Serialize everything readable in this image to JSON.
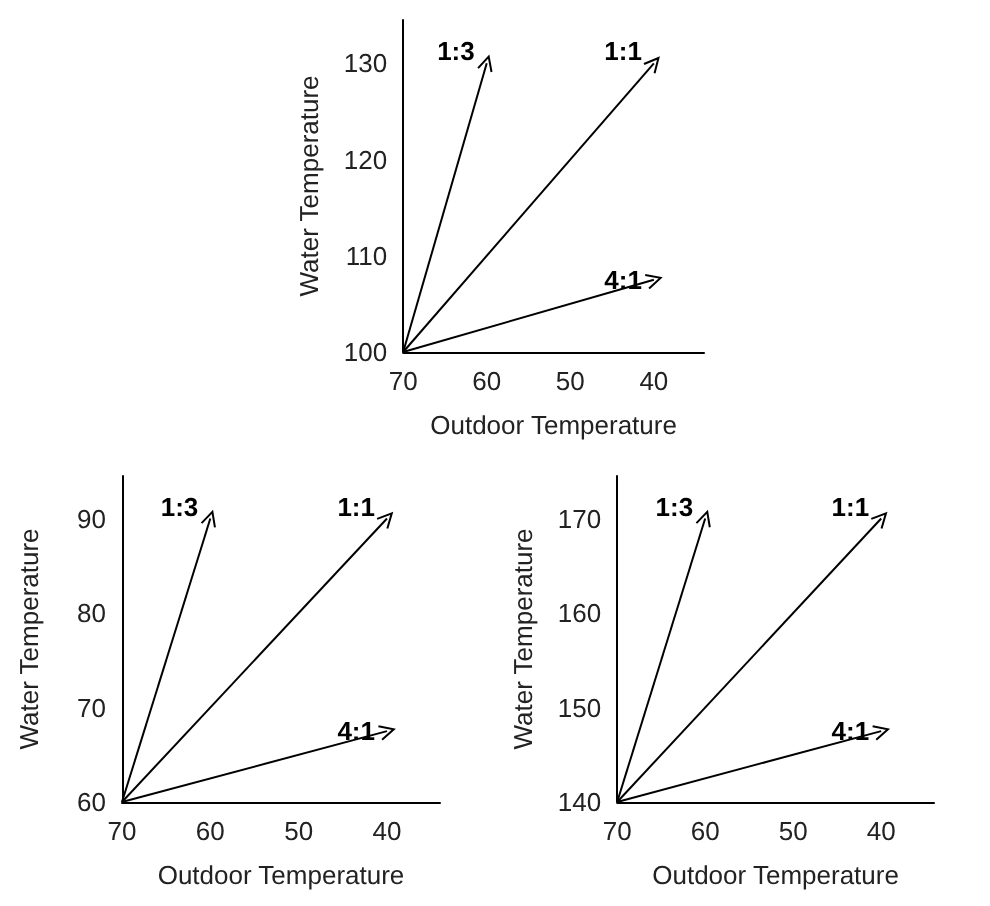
{
  "chart_data": [
    {
      "type": "line",
      "xlabel": "Outdoor Temperature",
      "ylabel": "Water Temperature",
      "xlim": [
        70,
        34
      ],
      "ylim": [
        100,
        134.5
      ],
      "xticks": [
        70,
        60,
        50,
        40
      ],
      "yticks": [
        100,
        110,
        120,
        130
      ],
      "grid": false,
      "legend": false,
      "series": [
        {
          "name": "1:3",
          "color": "#000000",
          "x": [
            70,
            60
          ],
          "values": [
            100,
            130
          ]
        },
        {
          "name": "1:1",
          "color": "#000000",
          "x": [
            70,
            40
          ],
          "values": [
            100,
            130
          ]
        },
        {
          "name": "4:1",
          "color": "#000000",
          "x": [
            70,
            40
          ],
          "values": [
            100,
            107.5
          ]
        }
      ]
    },
    {
      "type": "line",
      "xlabel": "Outdoor Temperature",
      "ylabel": "Water Temperature",
      "xlim": [
        70,
        34
      ],
      "ylim": [
        60,
        94.5
      ],
      "xticks": [
        70,
        60,
        50,
        40
      ],
      "yticks": [
        60,
        70,
        80,
        90
      ],
      "grid": false,
      "legend": false,
      "series": [
        {
          "name": "1:3",
          "color": "#000000",
          "x": [
            70,
            60
          ],
          "values": [
            60,
            90
          ]
        },
        {
          "name": "1:1",
          "color": "#000000",
          "x": [
            70,
            40
          ],
          "values": [
            60,
            90
          ]
        },
        {
          "name": "4:1",
          "color": "#000000",
          "x": [
            70,
            40
          ],
          "values": [
            60,
            67.5
          ]
        }
      ]
    },
    {
      "type": "line",
      "xlabel": "Outdoor Temperature",
      "ylabel": "Water Temperature",
      "xlim": [
        70,
        34
      ],
      "ylim": [
        140,
        174.5
      ],
      "xticks": [
        70,
        60,
        50,
        40
      ],
      "yticks": [
        140,
        150,
        160,
        170
      ],
      "grid": false,
      "legend": false,
      "series": [
        {
          "name": "1:3",
          "color": "#000000",
          "x": [
            70,
            60
          ],
          "values": [
            140,
            170
          ]
        },
        {
          "name": "1:1",
          "color": "#000000",
          "x": [
            70,
            40
          ],
          "values": [
            140,
            170
          ]
        },
        {
          "name": "4:1",
          "color": "#000000",
          "x": [
            70,
            40
          ],
          "values": [
            140,
            147.5
          ]
        }
      ]
    }
  ]
}
